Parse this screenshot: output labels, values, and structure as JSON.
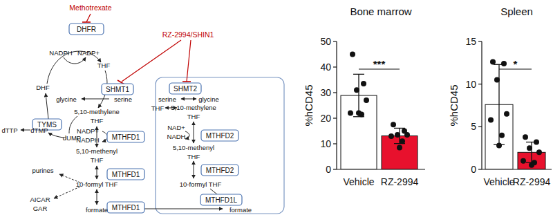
{
  "diagram": {
    "inhibitors": [
      "Methotrexate",
      "RZ-2994/SHIN1"
    ],
    "enzymes": [
      "DHFR",
      "SHMT1",
      "SHMT2",
      "TYMS",
      "MTHFD1",
      "MTHFD1",
      "MTHFD1",
      "MTHFD2",
      "MTHFD2",
      "MTHFD1L"
    ],
    "metabolites": [
      "NADPH",
      "NADP+",
      "THF",
      "DHF",
      "glycine",
      "serine",
      "5,10-methylene",
      "THF",
      "dTTP",
      "dTMP",
      "dUMP",
      "NADP+",
      "NADPH",
      "5,10-methenyl",
      "THF",
      "purines",
      "10-formyl THF",
      "AICAR",
      "GAR",
      "formate",
      "serine",
      "glycine",
      "THF",
      "5,10-methylene",
      "THF",
      "NAD+",
      "NADH",
      "5,10-methenyl",
      "THF",
      "10-formyl THF",
      "formate"
    ]
  },
  "chart_data": [
    {
      "type": "bar",
      "title": "Bone marrow",
      "y_label": "%hCD45",
      "categories": [
        "Vehicle",
        "RZ-2994"
      ],
      "values": [
        28.9,
        13.1
      ],
      "errors": [
        8.3,
        3.0
      ],
      "colors": [
        "#ffffff",
        "#e8112d"
      ],
      "points": [
        [
          45,
          33.5,
          31,
          27,
          22,
          21.5,
          22
        ],
        [
          17.5,
          15,
          13.5,
          13.5,
          13,
          11,
          8.5
        ]
      ],
      "ylim": [
        0,
        50
      ],
      "yticks": [
        0,
        10,
        20,
        30,
        40,
        50
      ],
      "annotations": [
        "***"
      ]
    },
    {
      "type": "bar",
      "title": "Spleen",
      "y_label": "%hCD45",
      "categories": [
        "Vehicle",
        "RZ-2994"
      ],
      "values": [
        7.6,
        2.0
      ],
      "errors": [
        4.7,
        1.2
      ],
      "colors": [
        "#ffffff",
        "#e8112d"
      ],
      "points": [
        [
          12.6,
          12.4,
          10.5,
          6.5,
          5.8,
          4.0,
          2.8
        ],
        [
          3.8,
          3.2,
          2.5,
          2.0,
          1.0,
          0.8,
          0.5
        ]
      ],
      "ylim": [
        0,
        15
      ],
      "yticks": [
        0,
        5,
        10,
        15
      ],
      "annotations": [
        "*"
      ]
    }
  ]
}
